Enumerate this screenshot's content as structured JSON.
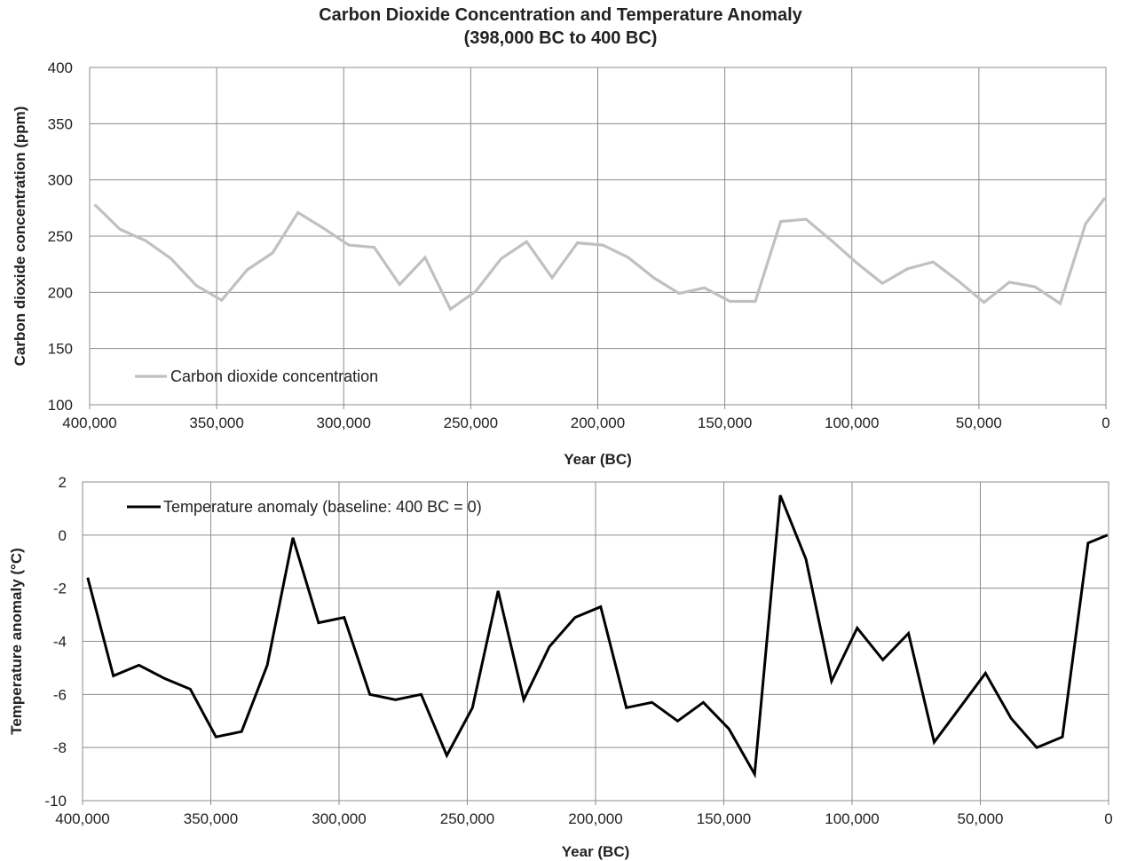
{
  "title_line1": "Carbon Dioxide Concentration and Temperature Anomaly",
  "title_line2": "(398,000 BC to 400 BC)",
  "chart_data": [
    {
      "type": "line",
      "xlabel": "Year (BC)",
      "ylabel": "Carbon dioxide concentration (ppm)",
      "xlim": [
        400000,
        0
      ],
      "ylim": [
        100,
        400
      ],
      "x_reversed": true,
      "xticks": [
        400000,
        350000,
        300000,
        250000,
        200000,
        150000,
        100000,
        50000,
        0
      ],
      "xtick_labels": [
        "400,000",
        "350,000",
        "300,000",
        "250,000",
        "200,000",
        "150,000",
        "100,000",
        "50,000",
        "0"
      ],
      "yticks": [
        100,
        150,
        200,
        250,
        300,
        350,
        400
      ],
      "ytick_labels": [
        "100",
        "150",
        "200",
        "250",
        "300",
        "350",
        "400"
      ],
      "grid": true,
      "legend_position": "bottom-left",
      "series": [
        {
          "name": "Carbon dioxide concentration",
          "color": "#c0c0c0",
          "x": [
            398000,
            388000,
            378000,
            368000,
            358000,
            348000,
            338000,
            328000,
            318000,
            308000,
            298000,
            288000,
            278000,
            268000,
            258000,
            248000,
            238000,
            228000,
            218000,
            208000,
            198000,
            188000,
            178000,
            168000,
            158000,
            148000,
            138000,
            128000,
            118000,
            108000,
            98000,
            88000,
            78000,
            68000,
            58000,
            48000,
            38000,
            28000,
            18000,
            8000,
            400
          ],
          "y": [
            278,
            256,
            246,
            230,
            206,
            193,
            220,
            235,
            271,
            257,
            242,
            240,
            207,
            231,
            185,
            201,
            230,
            245,
            213,
            244,
            242,
            231,
            213,
            199,
            204,
            192,
            192,
            263,
            265,
            246,
            226,
            208,
            221,
            227,
            210,
            191,
            209,
            205,
            190,
            261,
            284
          ]
        }
      ]
    },
    {
      "type": "line",
      "xlabel": "Year (BC)",
      "ylabel": "Temperature anomaly (°C)",
      "xlim": [
        400000,
        0
      ],
      "ylim": [
        -10,
        2
      ],
      "x_reversed": true,
      "xticks": [
        400000,
        350000,
        300000,
        250000,
        200000,
        150000,
        100000,
        50000,
        0
      ],
      "xtick_labels": [
        "400,000",
        "350,000",
        "300,000",
        "250,000",
        "200,000",
        "150,000",
        "100,000",
        "50,000",
        "0"
      ],
      "yticks": [
        -10,
        -8,
        -6,
        -4,
        -2,
        0,
        2
      ],
      "ytick_labels": [
        "-10",
        "-8",
        "-6",
        "-4",
        "-2",
        "0",
        "2"
      ],
      "grid": true,
      "legend_position": "top-left",
      "series": [
        {
          "name": "Temperature anomaly (baseline: 400 BC = 0)",
          "color": "#000000",
          "x": [
            398000,
            388000,
            378000,
            368000,
            358000,
            348000,
            338000,
            328000,
            318000,
            308000,
            298000,
            288000,
            278000,
            268000,
            258000,
            248000,
            238000,
            228000,
            218000,
            208000,
            198000,
            188000,
            178000,
            168000,
            158000,
            148000,
            138000,
            128000,
            118000,
            108000,
            98000,
            88000,
            78000,
            68000,
            58000,
            48000,
            38000,
            28000,
            18000,
            8000,
            400
          ],
          "y": [
            -1.6,
            -5.3,
            -4.9,
            -5.4,
            -5.8,
            -7.6,
            -7.4,
            -4.9,
            -0.1,
            -3.3,
            -3.1,
            -6.0,
            -6.2,
            -6.0,
            -8.3,
            -6.5,
            -2.1,
            -6.2,
            -4.2,
            -3.1,
            -2.7,
            -6.5,
            -6.3,
            -7.0,
            -6.3,
            -7.3,
            -9.0,
            1.5,
            -0.9,
            -5.5,
            -3.5,
            -4.7,
            -3.7,
            -7.8,
            -6.5,
            -5.2,
            -6.9,
            -8.0,
            -7.6,
            -0.3,
            0.0
          ]
        }
      ]
    }
  ]
}
